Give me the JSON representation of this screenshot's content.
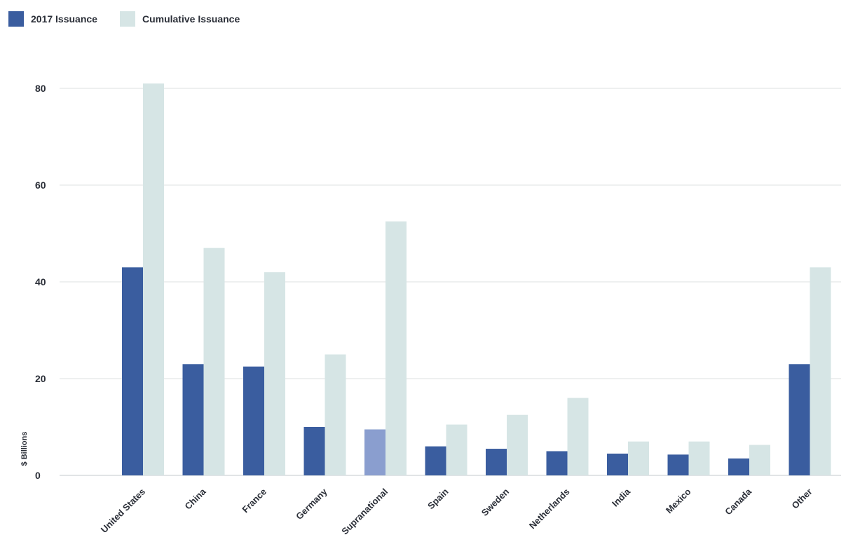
{
  "chart_data": {
    "type": "bar",
    "categories": [
      "United States",
      "China",
      "France",
      "Germany",
      "Supranational",
      "Spain",
      "Sweden",
      "Netherlands",
      "India",
      "Mexico",
      "Canada",
      "Other"
    ],
    "series": [
      {
        "name": "2017 Issuance",
        "color": "#3a5d9f",
        "values": [
          43,
          23,
          22.5,
          10,
          9.5,
          6,
          5.5,
          5,
          4.5,
          4.3,
          3.5,
          23
        ]
      },
      {
        "name": "Cumulative Issuance",
        "color": "#d6e5e5",
        "values": [
          81,
          47,
          42,
          25,
          52.5,
          10.5,
          12.5,
          16,
          7,
          7,
          6.3,
          43
        ]
      }
    ],
    "highlight": {
      "category": "Supranational",
      "series": "2017 Issuance",
      "color": "#8a9ecf"
    },
    "ylabel": "$ Billions",
    "yticks": [
      0,
      20,
      40,
      60,
      80
    ],
    "ylim": [
      0,
      82
    ],
    "grid": true,
    "legend_position": "top-left"
  }
}
